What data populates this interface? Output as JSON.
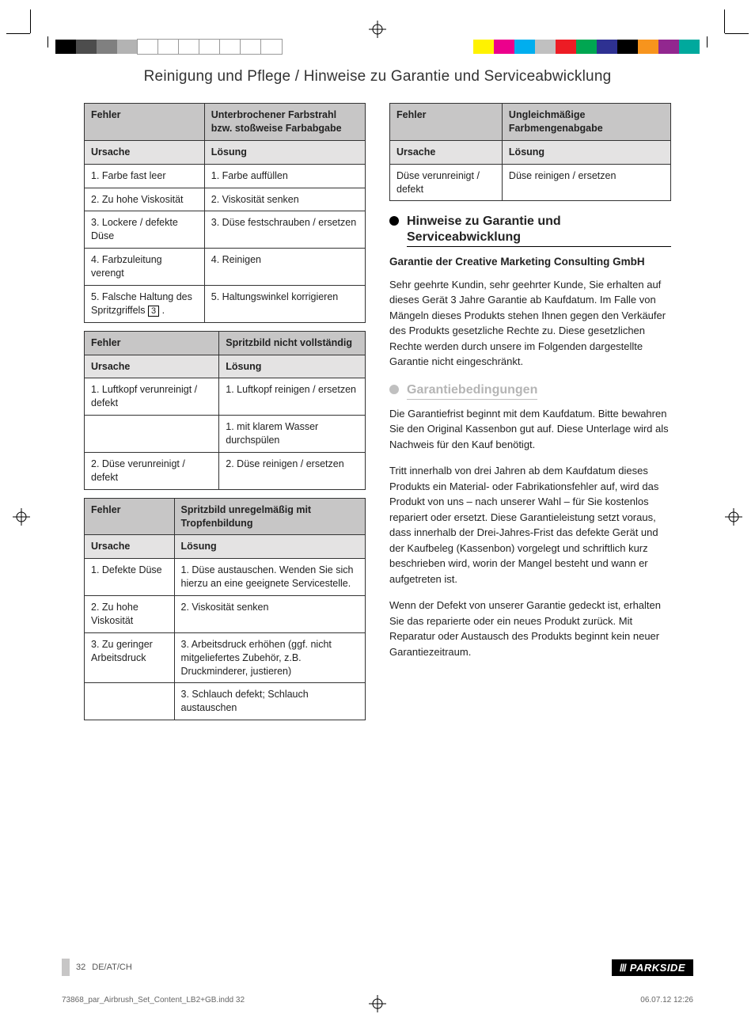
{
  "registration": {
    "swatches_left": [
      "#000000",
      "#4d4d4d",
      "#808080",
      "#b3b3b3",
      "#ffffff",
      "#ffffff",
      "#ffffff",
      "#ffffff",
      "#ffffff",
      "#ffffff",
      "#ffffff"
    ],
    "swatches_right": [
      "#fff200",
      "#ec008c",
      "#00aeef",
      "#c0c0c0",
      "#ed1c24",
      "#00a651",
      "#2e3192",
      "#000000",
      "#f7941d",
      "#92278f",
      "#00a99d"
    ]
  },
  "page_title": "Reinigung und Pflege / Hinweise zu Garantie und Serviceabwicklung",
  "col_labels": {
    "fehler": "Fehler",
    "ursache": "Ursache",
    "loesung": "Lösung"
  },
  "tables_left": [
    {
      "title": "Unterbrochener Farbstrahl bzw. stoßweise Farbabgabe",
      "rows": [
        {
          "c": "1. Farbe fast leer",
          "s": "1. Farbe auffüllen"
        },
        {
          "c": "2. Zu hohe Viskosität",
          "s": "2. Viskosität senken"
        },
        {
          "c": "3. Lockere / defekte Düse",
          "s": "3. Düse festschrauben / ersetzen"
        },
        {
          "c": "4. Farbzuleitung verengt",
          "s": "4. Reinigen"
        },
        {
          "c": "5. Falsche Haltung des Spritzgriffels",
          "s": "5. Haltungswinkel korrigieren",
          "badge": "3"
        }
      ]
    },
    {
      "title": "Spritzbild nicht vollständig",
      "rows": [
        {
          "c": "1. Luftkopf verunreinigt / defekt",
          "s": "1. Luftkopf reinigen / ersetzen"
        },
        {
          "c": "",
          "s": "1. mit klarem Wasser durchspülen"
        },
        {
          "c": "2. Düse verunreinigt / defekt",
          "s": "2. Düse reinigen / ersetzen"
        }
      ]
    },
    {
      "title": "Spritzbild unregelmäßig mit Tropfenbildung",
      "rows": [
        {
          "c": "1. Defekte Düse",
          "s": "1. Düse austauschen. Wenden Sie sich hierzu an eine geeignete Servicestelle."
        },
        {
          "c": "2. Zu hohe Viskosität",
          "s": "2. Viskosität senken"
        },
        {
          "c": "3. Zu geringer Arbeitsdruck",
          "s": "3. Arbeitsdruck erhöhen (ggf. nicht mitgeliefertes Zubehör, z.B. Druckminderer, justieren)"
        },
        {
          "c": "",
          "s": "3. Schlauch defekt; Schlauch austauschen"
        }
      ]
    }
  ],
  "table_right": {
    "title": "Ungleichmäßige Farbmengenabgabe",
    "rows": [
      {
        "c": "Düse verunreinigt / defekt",
        "s": "Düse reinigen / ersetzen"
      }
    ]
  },
  "warranty": {
    "heading": "Hinweise zu Garantie und Serviceabwicklung",
    "subhead": "Garantie der Creative Marketing Consulting GmbH",
    "p1": "Sehr geehrte Kundin, sehr geehrter Kunde, Sie erhalten auf dieses Gerät 3 Jahre Garantie ab Kaufdatum. Im Falle von Mängeln dieses Produkts stehen Ihnen gegen den Verkäufer des Produkts gesetzliche Rechte zu. Diese gesetzlichen Rechte werden durch unsere im Folgenden dargestellte Garantie nicht eingeschränkt."
  },
  "terms": {
    "heading": "Garantiebedingungen",
    "p1": "Die Garantiefrist beginnt mit dem Kaufdatum. Bitte bewahren Sie den Original Kassenbon gut auf. Diese Unterlage wird als Nachweis für den Kauf benötigt.",
    "p2": "Tritt innerhalb von drei Jahren ab dem Kaufdatum dieses Produkts ein Material- oder Fabrikationsfehler auf, wird das Produkt von uns – nach unserer Wahl – für Sie kostenlos repariert oder ersetzt. Diese Garantieleistung setzt voraus, dass innerhalb der Drei-Jahres-Frist das defekte Gerät und der Kaufbeleg (Kassenbon) vorgelegt und schriftlich kurz beschrieben wird, worin der Mangel besteht und wann er aufgetreten ist.",
    "p3": "Wenn der Defekt von unserer Garantie gedeckt ist, erhalten Sie das reparierte oder ein neues Produkt zurück. Mit Reparatur oder Austausch des Produkts beginnt kein neuer Garantiezeitraum."
  },
  "footer": {
    "page_num": "32",
    "region": "DE/AT/CH",
    "brand": "PARKSIDE",
    "file": "73868_par_Airbrush_Set_Content_LB2+GB.indd   32",
    "date": "06.07.12   12:26"
  }
}
